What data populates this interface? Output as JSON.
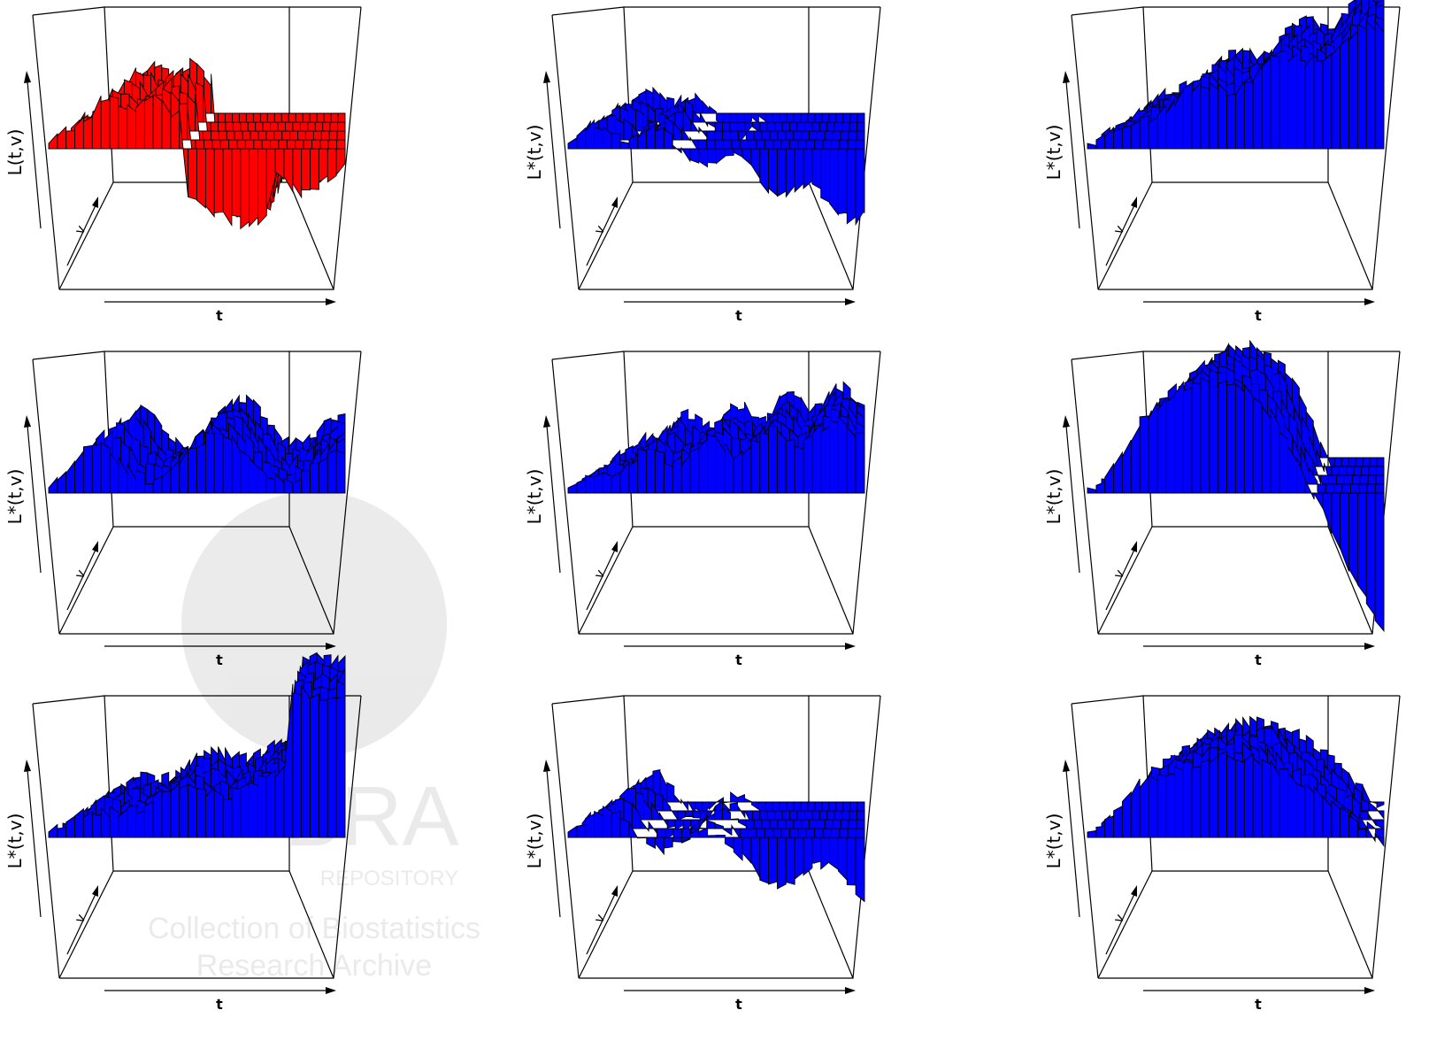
{
  "figure": {
    "panel_colors": {
      "observed": "#ff0000",
      "permuted": "#0000ff"
    },
    "watermark": {
      "logo_text": "BRA",
      "sub_text": "REPOSITORY",
      "line1": "Collection of Biostatistics",
      "line2": "Research Archive"
    }
  },
  "chart_data": [
    {
      "type": "surface3d",
      "panel": 1,
      "xlabel": "t",
      "ylabel": "v",
      "zlabel": "L(t,v)",
      "color": "#ff0000",
      "shape": "observed"
    },
    {
      "type": "surface3d",
      "panel": 2,
      "xlabel": "t",
      "ylabel": "v",
      "zlabel": "L*(t,v)",
      "color": "#0000ff",
      "shape": "descend"
    },
    {
      "type": "surface3d",
      "panel": 3,
      "xlabel": "t",
      "ylabel": "v",
      "zlabel": "L*(t,v)",
      "color": "#0000ff",
      "shape": "rise"
    },
    {
      "type": "surface3d",
      "panel": 4,
      "xlabel": "t",
      "ylabel": "v",
      "zlabel": "L*(t,v)",
      "color": "#0000ff",
      "shape": "bumpy"
    },
    {
      "type": "surface3d",
      "panel": 5,
      "xlabel": "t",
      "ylabel": "v",
      "zlabel": "L*(t,v)",
      "color": "#0000ff",
      "shape": "gentle"
    },
    {
      "type": "surface3d",
      "panel": 6,
      "xlabel": "t",
      "ylabel": "v",
      "zlabel": "L*(t,v)",
      "color": "#0000ff",
      "shape": "mound"
    },
    {
      "type": "surface3d",
      "panel": 7,
      "xlabel": "t",
      "ylabel": "v",
      "zlabel": "L*(t,v)",
      "color": "#0000ff",
      "shape": "rise-end"
    },
    {
      "type": "surface3d",
      "panel": 8,
      "xlabel": "t",
      "ylabel": "v",
      "zlabel": "L*(t,v)",
      "color": "#0000ff",
      "shape": "descend2"
    },
    {
      "type": "surface3d",
      "panel": 9,
      "xlabel": "t",
      "ylabel": "v",
      "zlabel": "L*(t,v)",
      "color": "#0000ff",
      "shape": "plateau"
    }
  ]
}
